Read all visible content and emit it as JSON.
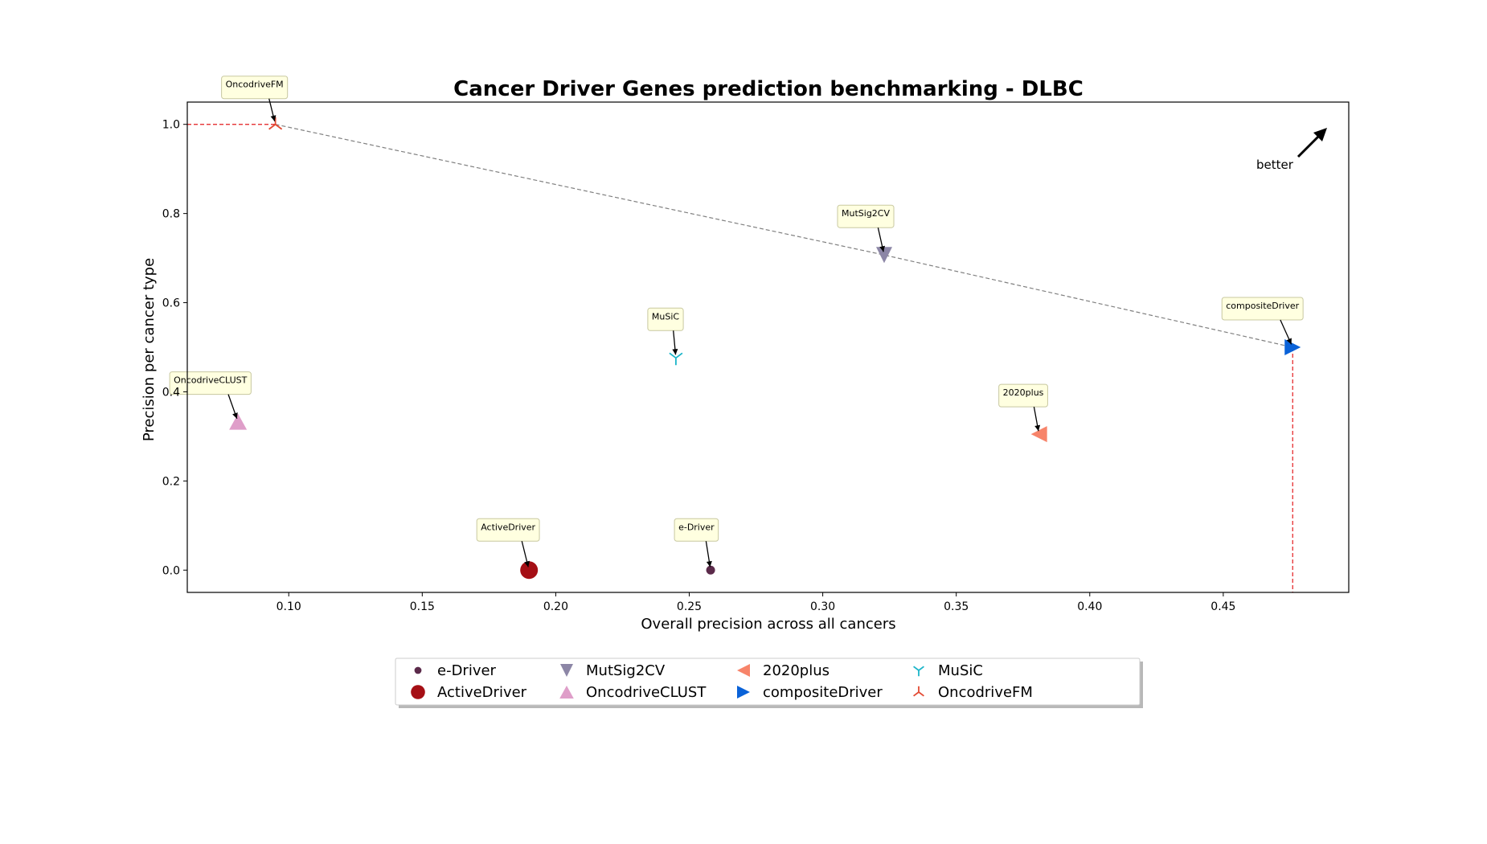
{
  "chart_data": {
    "type": "scatter",
    "title": "Cancer Driver Genes prediction benchmarking - DLBC",
    "xlabel": "Overall precision across all cancers",
    "ylabel": "Precision per cancer type",
    "xlim": [
      0.062,
      0.497
    ],
    "ylim": [
      -0.05,
      1.05
    ],
    "xticks": [
      "0.10",
      "0.15",
      "0.20",
      "0.25",
      "0.30",
      "0.35",
      "0.40",
      "0.45"
    ],
    "yticks": [
      "0.0",
      "0.2",
      "0.4",
      "0.6",
      "0.8",
      "1.0"
    ],
    "grid": false,
    "better_label": "better",
    "legend_position": "bottom-center",
    "pareto_front": [
      [
        0.095,
        1.0
      ],
      [
        0.323,
        0.707
      ],
      [
        0.476,
        0.5
      ]
    ],
    "series": [
      {
        "name": "e-Driver",
        "x": 0.258,
        "y": 0.0,
        "marker": "circle-small",
        "color": "#5b2a4a",
        "label_offset": [
          -45,
          -50
        ]
      },
      {
        "name": "ActiveDriver",
        "x": 0.19,
        "y": 0.0,
        "marker": "circle-large",
        "color": "#a50f15",
        "label_offset": [
          -65,
          -50
        ]
      },
      {
        "name": "MutSig2CV",
        "x": 0.323,
        "y": 0.707,
        "marker": "triangle-down",
        "color": "#8c86a6",
        "label_offset": [
          -58,
          -48
        ]
      },
      {
        "name": "OncodriveCLUST",
        "x": 0.081,
        "y": 0.333,
        "marker": "triangle-up",
        "color": "#df9ec9",
        "label_offset": [
          -85,
          -48
        ]
      },
      {
        "name": "2020plus",
        "x": 0.381,
        "y": 0.305,
        "marker": "triangle-left",
        "color": "#f7846a",
        "label_offset": [
          -50,
          -48
        ]
      },
      {
        "name": "compositeDriver",
        "x": 0.476,
        "y": 0.5,
        "marker": "triangle-right",
        "color": "#0a62d8",
        "label_offset": [
          -88,
          -48
        ]
      },
      {
        "name": "MuSiC",
        "x": 0.245,
        "y": 0.476,
        "marker": "tri-down",
        "color": "#1cb5c9",
        "label_offset": [
          -35,
          -48
        ]
      },
      {
        "name": "OncodriveFM",
        "x": 0.095,
        "y": 1.0,
        "marker": "tri-up",
        "color": "#e34a33",
        "label_offset": [
          -67,
          -46
        ]
      }
    ],
    "legend_order": [
      0,
      1,
      2,
      3,
      4,
      5,
      6,
      7
    ]
  }
}
